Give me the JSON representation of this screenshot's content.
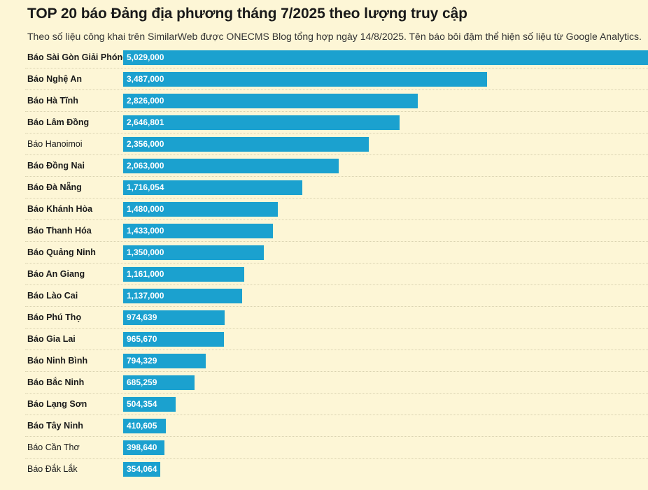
{
  "header": {
    "title": "TOP 20 báo Đảng địa phương tháng 7/2025 theo lượng truy cập",
    "subtitle": "Theo số liệu công khai trên SimilarWeb được ONECMS Blog tổng hợp ngày 14/8/2025. Tên báo bôi đậm thể hiện số liệu từ Google Analytics."
  },
  "colors": {
    "bar": "#1ba1cf",
    "background": "#fdf6d6",
    "label_text": "#ffffff"
  },
  "chart_data": {
    "type": "bar",
    "orientation": "horizontal",
    "title": "TOP 20 báo Đảng địa phương tháng 7/2025 theo lượng truy cập",
    "categories": [
      "Báo Sài Gòn Giải Phóng",
      "Báo Nghệ An",
      "Báo Hà Tĩnh",
      "Báo Lâm Đồng",
      "Báo Hanoimoi",
      "Báo Đồng Nai",
      "Báo Đà Nẵng",
      "Báo Khánh Hòa",
      "Báo Thanh Hóa",
      "Báo Quảng Ninh",
      "Báo An Giang",
      "Báo Lào Cai",
      "Báo Phú Thọ",
      "Báo Gia Lai",
      "Báo Ninh Bình",
      "Báo Bắc Ninh",
      "Báo Lạng Sơn",
      "Báo Tây Ninh",
      "Báo Cần Thơ",
      "Báo Đắk Lắk"
    ],
    "values": [
      5029000,
      3487000,
      2826000,
      2646801,
      2356000,
      2063000,
      1716054,
      1480000,
      1433000,
      1350000,
      1161000,
      1137000,
      974639,
      965670,
      794329,
      685259,
      504354,
      410605,
      398640,
      354064
    ],
    "value_labels": [
      "5,029,000",
      "3,487,000",
      "2,826,000",
      "2,646,801",
      "2,356,000",
      "2,063,000",
      "1,716,054",
      "1,480,000",
      "1,433,000",
      "1,350,000",
      "1,161,000",
      "1,137,000",
      "974,639",
      "965,670",
      "794,329",
      "685,259",
      "504,354",
      "410,605",
      "398,640",
      "354,064"
    ],
    "bold_labels": [
      true,
      true,
      true,
      true,
      false,
      true,
      true,
      true,
      true,
      true,
      true,
      true,
      true,
      true,
      true,
      true,
      true,
      true,
      false,
      false
    ],
    "xlim": [
      0,
      5029000
    ],
    "grid": false,
    "legend": "none"
  }
}
